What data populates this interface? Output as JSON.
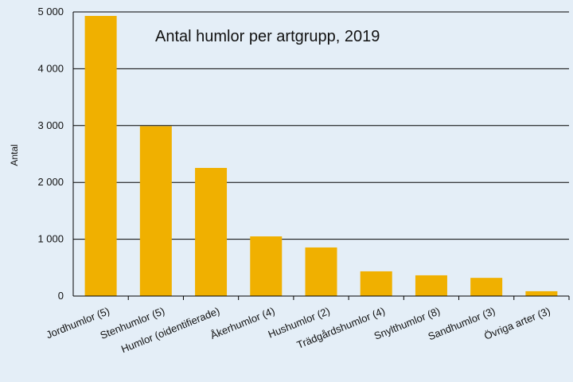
{
  "chart_data": {
    "type": "bar",
    "title": "Antal humlor per artgrupp, 2019",
    "y_label": "Antal",
    "categories": [
      "Jordhumlor (5)",
      "Stenhumlor (5)",
      "Humlor (oidentifierade)",
      "Åkerhumlor (4)",
      "Hushumlor (2)",
      "Trädgårdshumlor (4)",
      "Snylthumlor (8)",
      "Sandhumlor (3)",
      "Övriga arter (3)"
    ],
    "values": [
      4930,
      2990,
      2255,
      1050,
      855,
      435,
      365,
      320,
      85
    ],
    "color": "#f0b000",
    "ylim": [
      0,
      5000
    ],
    "yticks": [
      0,
      {
        "value": 1000,
        "label": "1 000"
      },
      {
        "value": 2000,
        "label": "2 000"
      },
      {
        "value": 3000,
        "label": "3 000"
      },
      {
        "value": 4000,
        "label": "4 000"
      },
      {
        "value": 5000,
        "label": "5 000"
      }
    ],
    "grid": true
  }
}
